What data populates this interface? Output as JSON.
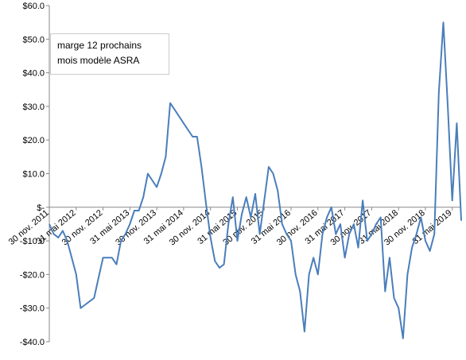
{
  "chart_data": {
    "type": "line",
    "title": "marge 12 prochains mois modèle ASRA",
    "categories": [
      "30 nov. 2011",
      null,
      null,
      null,
      null,
      null,
      "31 mai 2012",
      null,
      null,
      null,
      null,
      null,
      "30 nov. 2012",
      null,
      null,
      null,
      null,
      null,
      "31 mai 2013",
      null,
      null,
      null,
      null,
      null,
      "30 nov. 2013",
      null,
      null,
      null,
      null,
      null,
      "31 mai 2014",
      null,
      null,
      null,
      null,
      null,
      "30 nov. 2014",
      null,
      null,
      null,
      null,
      null,
      "31 mai 2015",
      null,
      null,
      null,
      null,
      null,
      "30 nov. 2015",
      null,
      null,
      null,
      null,
      null,
      "31 mai 2016",
      null,
      null,
      null,
      null,
      null,
      "30 nov. 2016",
      null,
      null,
      null,
      null,
      null,
      "31 mai 2017",
      null,
      null,
      null,
      null,
      null,
      "30 nov. 2017",
      null,
      null,
      null,
      null,
      null,
      "31 mai 2018",
      null,
      null,
      null,
      null,
      null,
      "30 nov. 2018",
      null,
      null,
      null,
      null,
      null,
      "31 mai 2019",
      null,
      null
    ],
    "series": [
      {
        "name": "marge 12 prochains mois modèle ASRA",
        "color": "#4a7ebb",
        "values": [
          -5,
          -8,
          -9,
          -7,
          -10,
          -15,
          -20,
          -30,
          -29,
          -28,
          -27,
          -21,
          -15,
          -15,
          -15,
          -17,
          -10,
          -8,
          -5,
          -1,
          -1,
          3,
          10,
          8,
          6,
          10,
          15,
          31,
          29,
          27,
          25,
          23,
          21,
          21,
          12,
          1,
          -9,
          -16,
          -18,
          -17,
          -5,
          3,
          -10,
          -2,
          3,
          -3,
          4,
          -8,
          2,
          12,
          10,
          5,
          -5,
          -8,
          -10,
          -20,
          -25,
          -37,
          -20,
          -15,
          -20,
          -8,
          -3,
          0,
          -8,
          -5,
          -15,
          -8,
          -5,
          -12,
          2,
          -10,
          -8,
          -5,
          -3,
          -25,
          -15,
          -27,
          -30,
          -39,
          -20,
          -12,
          -8,
          -3,
          -10,
          -13,
          -8,
          34,
          55,
          30,
          2,
          25,
          -4
        ]
      }
    ],
    "ylim": [
      -40,
      60
    ],
    "yticks": [
      {
        "value": -40,
        "label": "-$40.0"
      },
      {
        "value": -30,
        "label": "-$30.0"
      },
      {
        "value": -20,
        "label": "-$20.0"
      },
      {
        "value": -10,
        "label": "-$10.0"
      },
      {
        "value": 0,
        "label": "$-"
      },
      {
        "value": 10,
        "label": "$10.0"
      },
      {
        "value": 20,
        "label": "$20.0"
      },
      {
        "value": 30,
        "label": "$30.0"
      },
      {
        "value": 40,
        "label": "$40.0"
      },
      {
        "value": 50,
        "label": "$50.0"
      },
      {
        "value": 60,
        "label": "$60.0"
      }
    ],
    "grid": false
  }
}
